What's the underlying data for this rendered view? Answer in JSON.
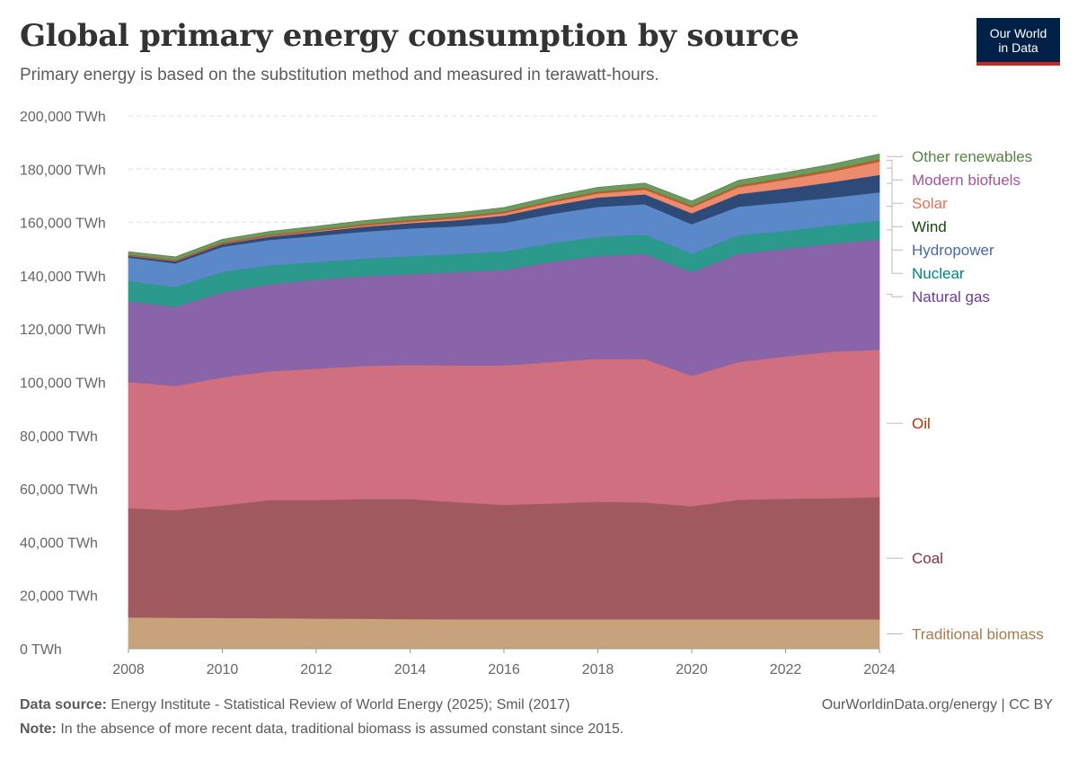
{
  "header": {
    "title": "Global primary energy consumption by source",
    "subtitle": "Primary energy is based on the substitution method and measured in terawatt-hours."
  },
  "logo": {
    "line1": "Our World",
    "line2": "in Data"
  },
  "footer": {
    "source_label": "Data source:",
    "source_text": "Energy Institute - Statistical Review of World Energy (2025); Smil (2017)",
    "note_label": "Note:",
    "note_text": "In the absence of more recent data, traditional biomass is assumed constant since 2015.",
    "credit": "OurWorldinData.org/energy | CC BY"
  },
  "chart_data": {
    "type": "area",
    "stacked": true,
    "x": [
      2008,
      2009,
      2010,
      2011,
      2012,
      2013,
      2014,
      2015,
      2016,
      2017,
      2018,
      2019,
      2020,
      2021,
      2022,
      2023,
      2024
    ],
    "xticks": [
      "2008",
      "2010",
      "2012",
      "2014",
      "2016",
      "2018",
      "2020",
      "2022",
      "2024"
    ],
    "xtick_values": [
      2008,
      2010,
      2012,
      2014,
      2016,
      2018,
      2020,
      2022,
      2024
    ],
    "yticks": [
      "0 TWh",
      "20,000 TWh",
      "40,000 TWh",
      "60,000 TWh",
      "80,000 TWh",
      "100,000 TWh",
      "120,000 TWh",
      "140,000 TWh",
      "160,000 TWh",
      "180,000 TWh",
      "200,000 TWh"
    ],
    "ylim": [
      0,
      200000
    ],
    "grid": true,
    "legend_position": "right",
    "series": [
      {
        "name": "Traditional biomass",
        "color": "#c8a27a",
        "label_color": "#a27c4f",
        "values": [
          11800,
          11700,
          11600,
          11500,
          11400,
          11300,
          11200,
          11100,
          11100,
          11100,
          11100,
          11100,
          11100,
          11100,
          11100,
          11100,
          11100
        ]
      },
      {
        "name": "Coal",
        "color": "#a05a5f",
        "label_color": "#883039",
        "values": [
          41000,
          40300,
          42200,
          44300,
          44400,
          44900,
          45000,
          43900,
          42900,
          43400,
          44100,
          43800,
          42400,
          44800,
          45200,
          45400,
          45800
        ]
      },
      {
        "name": "Oil",
        "color": "#cf6f80",
        "label_color": "#b13507",
        "values": [
          47400,
          46700,
          48100,
          48400,
          49400,
          50000,
          50400,
          51400,
          52400,
          53200,
          53700,
          53900,
          49000,
          51800,
          53500,
          55100,
          55400
        ]
      },
      {
        "name": "Natural gas",
        "color": "#8a64a8",
        "label_color": "#6d3e91",
        "values": [
          30300,
          29700,
          31900,
          32600,
          33400,
          33700,
          34000,
          35000,
          35800,
          37500,
          38500,
          39400,
          38900,
          40600,
          40300,
          40500,
          41400
        ]
      },
      {
        "name": "Nuclear",
        "color": "#2b9a8c",
        "label_color": "#00847e",
        "values": [
          7600,
          7400,
          7700,
          7100,
          6500,
          6500,
          6700,
          6800,
          6900,
          7000,
          7200,
          7300,
          6900,
          7000,
          6700,
          6800,
          7000
        ]
      },
      {
        "name": "Hydropower",
        "color": "#5a88c9",
        "label_color": "#4c6a9c",
        "values": [
          8800,
          8900,
          9400,
          9600,
          9900,
          10200,
          10500,
          10400,
          10800,
          11000,
          11300,
          11400,
          11100,
          10700,
          10800,
          10500,
          10700
        ]
      },
      {
        "name": "Wind",
        "color": "#2e4a78",
        "label_color": "#18470f",
        "values": [
          600,
          750,
          1000,
          1200,
          1500,
          1800,
          2000,
          2300,
          2700,
          3100,
          3500,
          3700,
          4100,
          4700,
          5200,
          5800,
          6500
        ]
      },
      {
        "name": "Solar",
        "color": "#ec8b6e",
        "label_color": "#e56e5a",
        "values": [
          40,
          60,
          100,
          200,
          300,
          400,
          550,
          700,
          900,
          1200,
          1500,
          1800,
          2200,
          2600,
          3300,
          4000,
          5000
        ]
      },
      {
        "name": "Modern biofuels",
        "color": "#b55e2e",
        "label_color": "#a2559c",
        "values": [
          500,
          520,
          560,
          560,
          570,
          600,
          640,
          650,
          660,
          700,
          740,
          780,
          700,
          780,
          820,
          850,
          900
        ]
      },
      {
        "name": "Other renewables",
        "color": "#6a9c5e",
        "label_color": "#578145",
        "values": [
          1000,
          1050,
          1100,
          1150,
          1200,
          1250,
          1300,
          1380,
          1450,
          1500,
          1550,
          1600,
          1650,
          1750,
          1800,
          1850,
          1900
        ]
      }
    ]
  }
}
